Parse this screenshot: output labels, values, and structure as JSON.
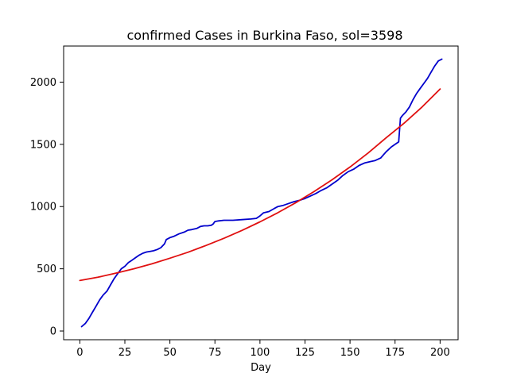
{
  "chart_data": {
    "type": "line",
    "title": "confirmed Cases in Burkina Faso, sol=3598",
    "xlabel": "Day",
    "ylabel": "",
    "xlim": [
      -9,
      210
    ],
    "ylim": [
      -70,
      2290
    ],
    "xticks": [
      0,
      25,
      50,
      75,
      100,
      125,
      150,
      175,
      200
    ],
    "yticks": [
      0,
      500,
      1000,
      1500,
      2000
    ],
    "grid": false,
    "series": [
      {
        "color": "#0000cc",
        "x": [
          1,
          3,
          5,
          7,
          9,
          11,
          13,
          15,
          17,
          19,
          21,
          23,
          25,
          27,
          29,
          31,
          33,
          35,
          37,
          39,
          41,
          43,
          45,
          47,
          48,
          50,
          52,
          55,
          58,
          60,
          62,
          65,
          67,
          69,
          71,
          73,
          74,
          75,
          77,
          80,
          85,
          90,
          95,
          98,
          100,
          102,
          105,
          108,
          110,
          113,
          116,
          119,
          122,
          125,
          128,
          131,
          134,
          137,
          140,
          143,
          146,
          149,
          152,
          155,
          158,
          161,
          164,
          167,
          170,
          173,
          175,
          177,
          178,
          179,
          181,
          183,
          185,
          187,
          189,
          191,
          193,
          195,
          197,
          199,
          201
        ],
        "y": [
          35,
          60,
          100,
          150,
          200,
          250,
          290,
          320,
          370,
          420,
          460,
          500,
          520,
          550,
          570,
          590,
          610,
          625,
          635,
          640,
          645,
          655,
          670,
          700,
          735,
          750,
          760,
          780,
          795,
          810,
          815,
          825,
          840,
          845,
          845,
          850,
          860,
          880,
          885,
          890,
          890,
          895,
          900,
          905,
          925,
          950,
          960,
          985,
          1000,
          1010,
          1025,
          1040,
          1050,
          1065,
          1085,
          1105,
          1130,
          1150,
          1180,
          1210,
          1250,
          1280,
          1300,
          1330,
          1350,
          1360,
          1370,
          1390,
          1440,
          1480,
          1500,
          1520,
          1710,
          1730,
          1760,
          1800,
          1860,
          1910,
          1950,
          1990,
          2030,
          2080,
          2130,
          2170,
          2185
        ]
      },
      {
        "color": "#e01010",
        "x": [
          0,
          10,
          20,
          30,
          40,
          50,
          60,
          70,
          80,
          90,
          100,
          110,
          120,
          130,
          140,
          150,
          160,
          170,
          180,
          190,
          200
        ],
        "y": [
          406,
          432,
          465,
          500,
          540,
          585,
          633,
          687,
          745,
          808,
          877,
          951,
          1032,
          1120,
          1215,
          1318,
          1430,
          1552,
          1670,
          1800,
          1945
        ]
      }
    ]
  }
}
